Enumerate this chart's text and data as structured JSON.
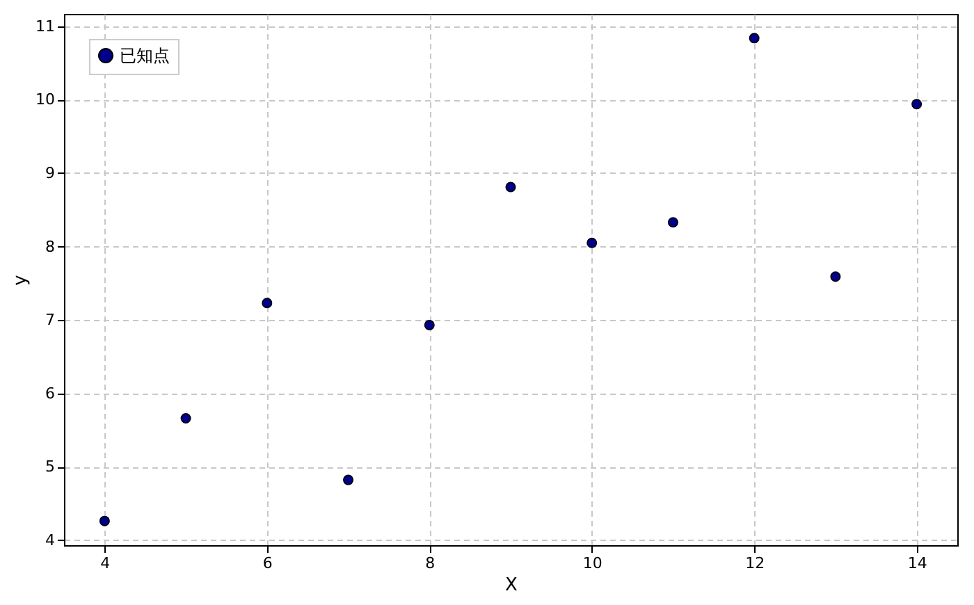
{
  "chart_data": {
    "type": "scatter",
    "xlabel": "X",
    "ylabel": "y",
    "x": [
      4,
      5,
      6,
      7,
      8,
      9,
      10,
      11,
      12,
      13,
      14
    ],
    "series": [
      {
        "name": "已知点",
        "color": "#00008b",
        "values": [
          4.26,
          5.66,
          7.23,
          4.82,
          6.93,
          8.81,
          8.05,
          8.33,
          10.84,
          7.59,
          9.94
        ]
      }
    ],
    "xlim": [
      3.5,
      14.5
    ],
    "ylim": [
      3.93,
      11.17
    ],
    "xticks": [
      4,
      6,
      8,
      10,
      12,
      14
    ],
    "yticks": [
      4,
      5,
      6,
      7,
      8,
      9,
      10,
      11
    ],
    "grid": true,
    "legend": "top left",
    "marker": "circle"
  }
}
